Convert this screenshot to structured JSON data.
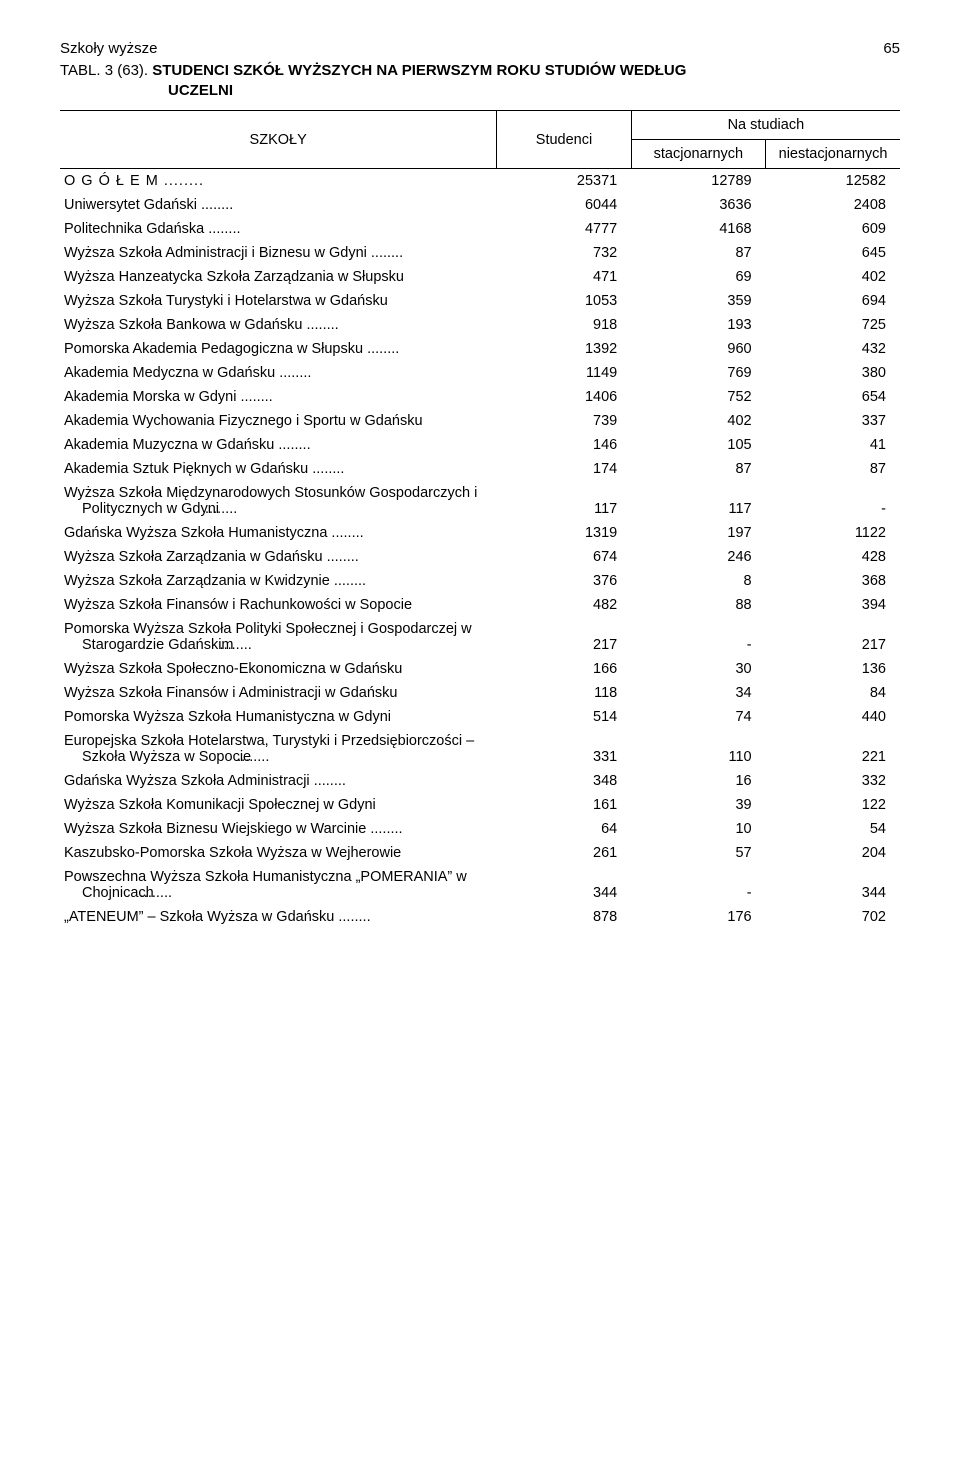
{
  "header": {
    "running_head": "Szkoły wyższe",
    "page_number": "65",
    "table_code": "TABL. 3 (63).",
    "title_line1": "STUDENCI SZKÓŁ WYŻSZYCH NA PIERWSZYM ROKU STUDIÓW WEDŁUG",
    "title_line2": "UCZELNI"
  },
  "columns": {
    "szkoly": "SZKOŁY",
    "studenci": "Studenci",
    "na_studiach": "Na studiach",
    "stacjonarnych": "stacjonarnych",
    "niestacjonarnych": "niestacjonarnych"
  },
  "rows": [
    {
      "label": "O G Ó Ł E M",
      "dots": true,
      "c1": "25371",
      "c2": "12789",
      "c3": "12582",
      "total": true
    },
    {
      "label": "Uniwersytet Gdański",
      "dots": true,
      "c1": "6044",
      "c2": "3636",
      "c3": "2408"
    },
    {
      "label": "Politechnika Gdańska",
      "dots": true,
      "c1": "4777",
      "c2": "4168",
      "c3": "609"
    },
    {
      "label": "Wyższa Szkoła Administracji i Biznesu w Gdyni",
      "dots": true,
      "c1": "732",
      "c2": "87",
      "c3": "645"
    },
    {
      "label": "Wyższa Hanzeatycka Szkoła Zarządzania w Słupsku",
      "dots": false,
      "c1": "471",
      "c2": "69",
      "c3": "402"
    },
    {
      "label": "Wyższa Szkoła Turystyki i Hotelarstwa w Gdańsku",
      "dots": false,
      "c1": "1053",
      "c2": "359",
      "c3": "694"
    },
    {
      "label": "Wyższa Szkoła Bankowa w Gdańsku",
      "dots": true,
      "c1": "918",
      "c2": "193",
      "c3": "725"
    },
    {
      "label": "Pomorska Akademia Pedagogiczna w Słupsku",
      "dots": true,
      "c1": "1392",
      "c2": "960",
      "c3": "432"
    },
    {
      "label": "Akademia Medyczna w Gdańsku",
      "dots": true,
      "c1": "1149",
      "c2": "769",
      "c3": "380"
    },
    {
      "label": "Akademia Morska w Gdyni",
      "dots": true,
      "c1": "1406",
      "c2": "752",
      "c3": "654"
    },
    {
      "label": "Akademia Wychowania Fizycznego i Sportu w Gdańsku",
      "dots": false,
      "c1": "739",
      "c2": "402",
      "c3": "337"
    },
    {
      "label": "Akademia Muzyczna w Gdańsku",
      "dots": true,
      "c1": "146",
      "c2": "105",
      "c3": "41"
    },
    {
      "label": "Akademia Sztuk Pięknych w Gdańsku",
      "dots": true,
      "c1": "174",
      "c2": "87",
      "c3": "87"
    },
    {
      "label": "Wyższa Szkoła Międzynarodowych Stosunków Gospodarczych i Politycznych w Gdyni",
      "dots": true,
      "hanging": true,
      "c1": "117",
      "c2": "117",
      "c3": "-"
    },
    {
      "label": "Gdańska Wyższa Szkoła Humanistyczna",
      "dots": true,
      "c1": "1319",
      "c2": "197",
      "c3": "1122"
    },
    {
      "label": "Wyższa Szkoła Zarządzania w Gdańsku",
      "dots": true,
      "c1": "674",
      "c2": "246",
      "c3": "428"
    },
    {
      "label": "Wyższa Szkoła Zarządzania w Kwidzynie",
      "dots": true,
      "c1": "376",
      "c2": "8",
      "c3": "368"
    },
    {
      "label": "Wyższa Szkoła Finansów i Rachunkowości w Sopocie",
      "dots": false,
      "c1": "482",
      "c2": "88",
      "c3": "394"
    },
    {
      "label": "Pomorska Wyższa Szkoła Polityki Społecznej i Gospodarczej w Starogardzie Gdańskim",
      "dots": true,
      "hanging": true,
      "c1": "217",
      "c2": "-",
      "c3": "217"
    },
    {
      "label": "Wyższa Szkoła Społeczno-Ekonomiczna w Gdańsku",
      "dots": false,
      "c1": "166",
      "c2": "30",
      "c3": "136"
    },
    {
      "label": "Wyższa Szkoła Finansów i Administracji w Gdańsku",
      "dots": false,
      "c1": "118",
      "c2": "34",
      "c3": "84"
    },
    {
      "label": "Pomorska Wyższa Szkoła Humanistyczna w Gdyni",
      "dots": false,
      "c1": "514",
      "c2": "74",
      "c3": "440"
    },
    {
      "label": "Europejska Szkoła Hotelarstwa, Turystyki i Przedsiębiorczości – Szkoła Wyższa w Sopocie",
      "dots": true,
      "hanging": true,
      "c1": "331",
      "c2": "110",
      "c3": "221"
    },
    {
      "label": "Gdańska Wyższa Szkoła Administracji",
      "dots": true,
      "c1": "348",
      "c2": "16",
      "c3": "332"
    },
    {
      "label": "Wyższa Szkoła Komunikacji Społecznej w Gdyni",
      "dots": false,
      "c1": "161",
      "c2": "39",
      "c3": "122"
    },
    {
      "label": "Wyższa Szkoła Biznesu Wiejskiego w Warcinie",
      "dots": true,
      "c1": "64",
      "c2": "10",
      "c3": "54"
    },
    {
      "label": "Kaszubsko-Pomorska Szkoła Wyższa w Wejherowie",
      "dots": false,
      "c1": "261",
      "c2": "57",
      "c3": "204"
    },
    {
      "label": "Powszechna Wyższa Szkoła Humanistyczna „POMERANIA” w Chojnicach",
      "dots": true,
      "hanging": true,
      "c1": "344",
      "c2": "-",
      "c3": "344"
    },
    {
      "label": "„ATENEUM” – Szkoła Wyższa w Gdańsku",
      "dots": true,
      "c1": "878",
      "c2": "176",
      "c3": "702"
    }
  ]
}
